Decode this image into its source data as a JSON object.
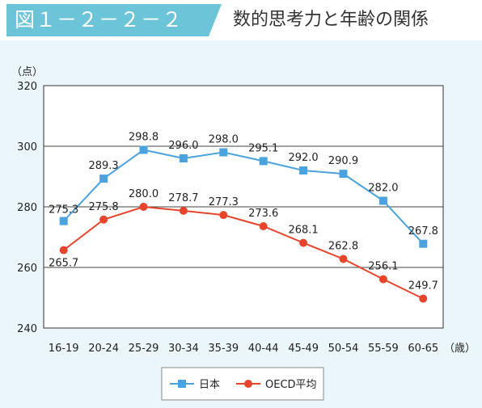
{
  "figure": {
    "label": "図１－２－２－２",
    "title": "数的思考力と年齢の関係"
  },
  "chart_data": {
    "type": "line",
    "ylabel": "（点）",
    "xlabel": "（歳）",
    "ylim": [
      240,
      320
    ],
    "yticks": [
      240,
      260,
      280,
      300,
      320
    ],
    "grid": true,
    "legend_position": "bottom-center",
    "categories": [
      "16-19",
      "20-24",
      "25-29",
      "30-34",
      "35-39",
      "40-44",
      "45-49",
      "50-54",
      "55-59",
      "60-65"
    ],
    "series": [
      {
        "name": "日本",
        "color": "#4aa3de",
        "marker": "square",
        "values": [
          275.3,
          289.3,
          298.8,
          296.0,
          298.0,
          295.1,
          292.0,
          290.9,
          282.0,
          267.8
        ],
        "labels": [
          "275.3",
          "289.3",
          "298.8",
          "296.0",
          "298.0",
          "295.1",
          "292.0",
          "290.9",
          "282.0",
          "267.8"
        ]
      },
      {
        "name": "OECD平均",
        "color": "#e8432b",
        "marker": "circle",
        "values": [
          265.7,
          275.8,
          280.0,
          278.7,
          277.3,
          273.6,
          268.1,
          262.8,
          256.1,
          249.7
        ],
        "labels": [
          "265.7",
          "275.8",
          "280.0",
          "278.7",
          "277.3",
          "273.6",
          "268.1",
          "262.8",
          "256.1",
          "249.7"
        ]
      }
    ]
  }
}
